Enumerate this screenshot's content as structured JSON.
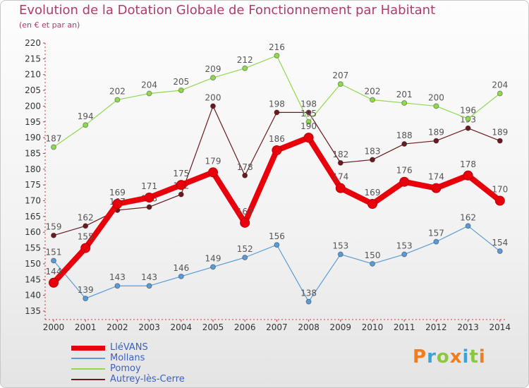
{
  "header": {
    "title": "Evolution de la Dotation Globale de Fonctionnement par Habitant",
    "subtitle": "(en € et par an)"
  },
  "logo": {
    "text": "Proxiti"
  },
  "chart_data": {
    "type": "line",
    "title": "Evolution de la Dotation Globale de Fonctionnement par Habitant",
    "subtitle": "(en € et par an)",
    "xlabel": "",
    "ylabel": "",
    "x": [
      "2000",
      "2001",
      "2002",
      "2003",
      "2004",
      "2005",
      "2006",
      "2007",
      "2008",
      "2009",
      "2010",
      "2011",
      "2012",
      "2013",
      "2014"
    ],
    "ylim": [
      135,
      220
    ],
    "yticks": [
      135,
      140,
      145,
      150,
      155,
      160,
      165,
      170,
      175,
      180,
      185,
      190,
      195,
      200,
      205,
      210,
      215,
      220
    ],
    "grid": false,
    "legend_position": "bottom-left",
    "series": [
      {
        "name": "LléVANS",
        "color": "#e8000b",
        "values": [
          144,
          155,
          169,
          171,
          175,
          179,
          163,
          186,
          190,
          174,
          169,
          176,
          174,
          178,
          170
        ]
      },
      {
        "name": "Mollans",
        "color": "#5b9bd5",
        "values": [
          151,
          139,
          143,
          143,
          146,
          149,
          152,
          156,
          138,
          153,
          150,
          153,
          157,
          162,
          154
        ]
      },
      {
        "name": "Pomoy",
        "color": "#8fd94f",
        "values": [
          187,
          194,
          202,
          204,
          205,
          209,
          212,
          216,
          195,
          207,
          202,
          201,
          200,
          196,
          204
        ]
      },
      {
        "name": "Autrey-lès-Cerre",
        "color": "#6b1a1f",
        "values": [
          159,
          162,
          167,
          168,
          172,
          200,
          178,
          198,
          198,
          182,
          183,
          188,
          189,
          193,
          189
        ]
      }
    ]
  }
}
